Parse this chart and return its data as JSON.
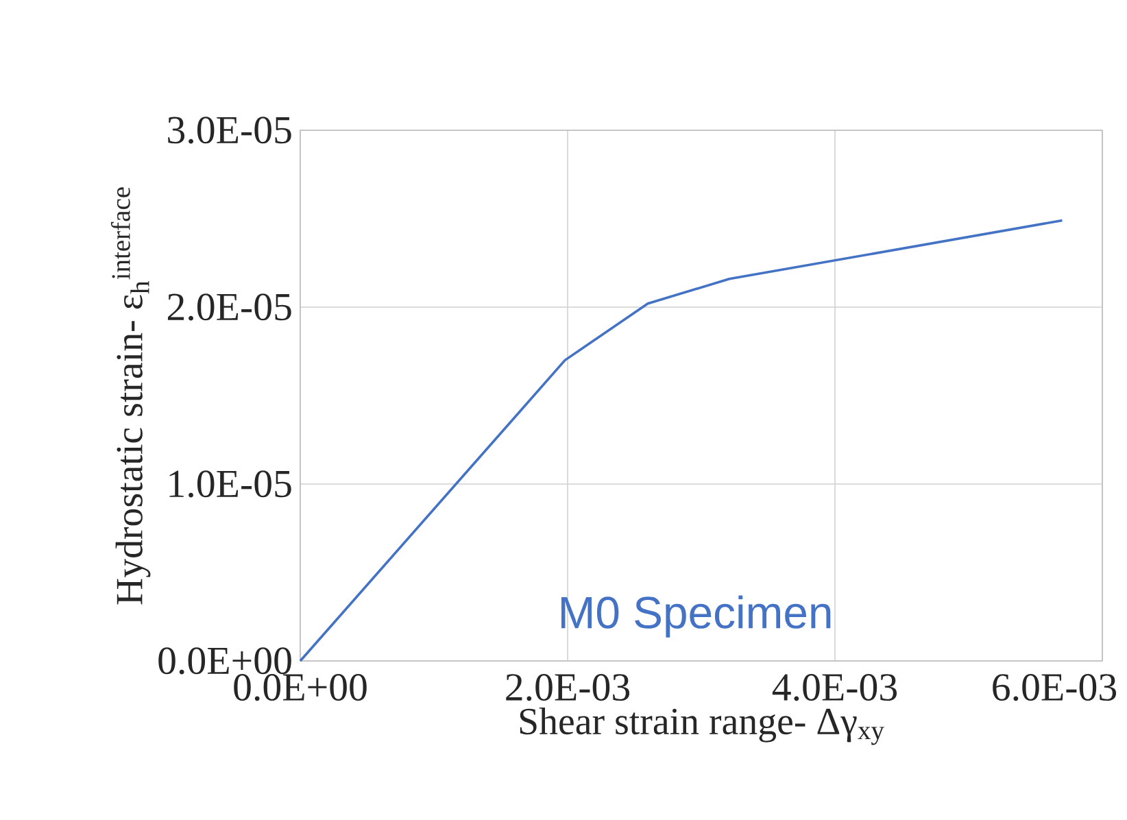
{
  "chart_data": {
    "type": "line",
    "xlabel": "Shear strain range- Δγ$_{xy}$",
    "ylabel": "Hydrostatic strain- ε$_{h}$$^{interface}$",
    "xlim": [
      0,
      0.006
    ],
    "ylim": [
      0,
      3e-05
    ],
    "xticks": [
      {
        "value": 0,
        "label": "0.0E+00"
      },
      {
        "value": 0.002,
        "label": "2.0E-03"
      },
      {
        "value": 0.004,
        "label": "4.0E-03"
      },
      {
        "value": 0.006,
        "label": "6.0E-03"
      }
    ],
    "yticks": [
      {
        "value": 0,
        "label": "0.0E+00"
      },
      {
        "value": 1e-05,
        "label": "1.0E-05"
      },
      {
        "value": 2e-05,
        "label": "2.0E-05"
      },
      {
        "value": 3e-05,
        "label": "3.0E-05"
      }
    ],
    "grid": true,
    "series": [
      {
        "name": "M0 Specimen",
        "color": "#4472c4",
        "x": [
          0,
          0.00198,
          0.0026,
          0.00321,
          0.0057
        ],
        "values": [
          0,
          1.7e-05,
          2.02e-05,
          2.16e-05,
          2.49e-05
        ]
      }
    ]
  }
}
